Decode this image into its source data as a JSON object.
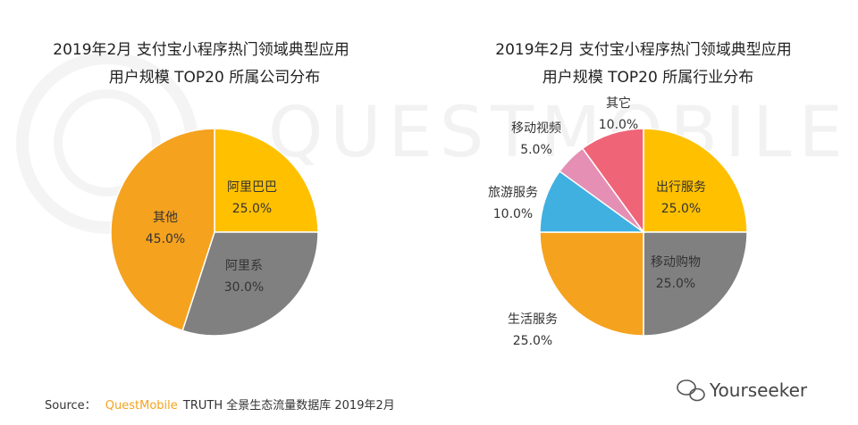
{
  "watermark": "QUESTMOBILE",
  "source": {
    "prefix": "Source：",
    "brand": "QuestMobile",
    "suffix": "TRUTH 全景生态流量数据库 2019年2月"
  },
  "credit": "Yourseeker",
  "chart_data": [
    {
      "type": "pie",
      "title_line1": "2019年2月 支付宝小程序热门领域典型应用",
      "title_line2": "用户规模 TOP20 所属公司分布",
      "slices": [
        {
          "label": "阿里巴巴",
          "value": 25.0,
          "value_text": "25.0%",
          "color": "#FFC000"
        },
        {
          "label": "阿里系",
          "value": 30.0,
          "value_text": "30.0%",
          "color": "#808080"
        },
        {
          "label": "其他",
          "value": 45.0,
          "value_text": "45.0%",
          "color": "#F5A21E"
        }
      ]
    },
    {
      "type": "pie",
      "title_line1": "2019年2月 支付宝小程序热门领域典型应用",
      "title_line2": "用户规模 TOP20 所属行业分布",
      "slices": [
        {
          "label": "出行服务",
          "value": 25.0,
          "value_text": "25.0%",
          "color": "#FFC000"
        },
        {
          "label": "移动购物",
          "value": 25.0,
          "value_text": "25.0%",
          "color": "#808080"
        },
        {
          "label": "生活服务",
          "value": 25.0,
          "value_text": "25.0%",
          "color": "#F5A21E"
        },
        {
          "label": "旅游服务",
          "value": 10.0,
          "value_text": "10.0%",
          "color": "#3FB0E0"
        },
        {
          "label": "移动视频",
          "value": 5.0,
          "value_text": "5.0%",
          "color": "#E58FB4"
        },
        {
          "label": "其它",
          "value": 10.0,
          "value_text": "10.0%",
          "color": "#F06478"
        }
      ]
    }
  ]
}
